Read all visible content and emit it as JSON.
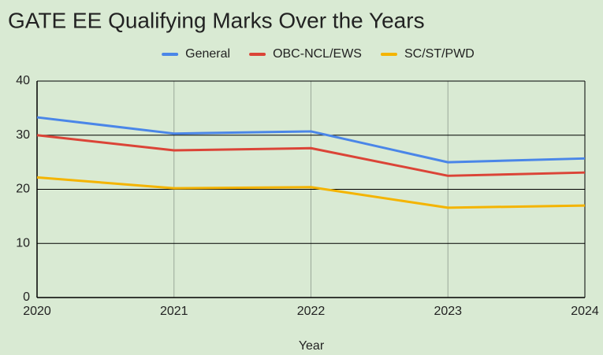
{
  "chart_data": {
    "type": "line",
    "title": "GATE EE Qualifying Marks Over the Years",
    "x_label": "Year",
    "x": [
      2020,
      2021,
      2022,
      2023,
      2024
    ],
    "xlim": [
      2020,
      2024
    ],
    "xticks": [
      2020,
      2021,
      2022,
      2023,
      2024
    ],
    "ylim": [
      0,
      40
    ],
    "yticks": [
      0,
      10,
      20,
      30,
      40
    ],
    "grid": true,
    "legend": "top",
    "series": [
      {
        "name": "General",
        "color": "#4a86e8",
        "values": [
          33.3,
          30.3,
          30.7,
          25.0,
          25.7
        ]
      },
      {
        "name": "OBC-NCL/EWS",
        "color": "#db4437",
        "values": [
          30.0,
          27.2,
          27.6,
          22.5,
          23.1
        ]
      },
      {
        "name": "SC/ST/PWD",
        "color": "#f4b400",
        "values": [
          22.2,
          20.2,
          20.4,
          16.6,
          17.0
        ]
      }
    ]
  }
}
